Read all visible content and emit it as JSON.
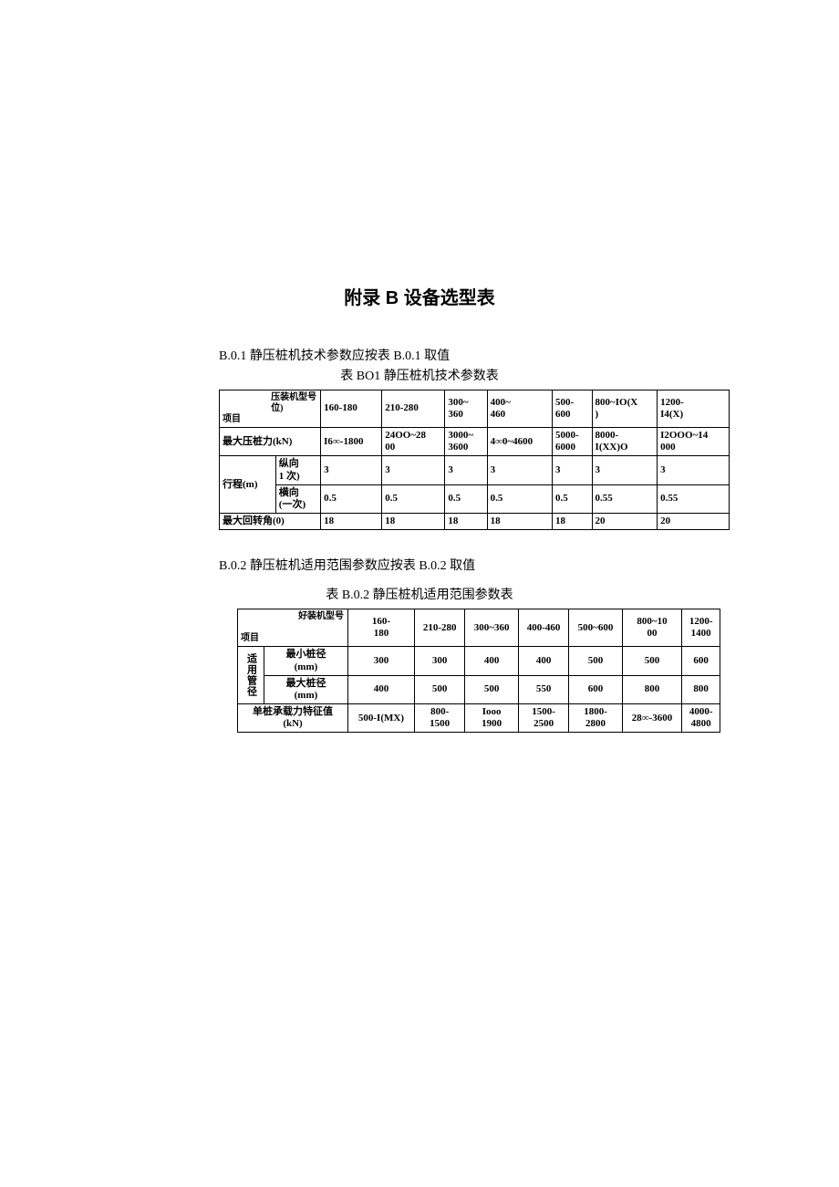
{
  "colors": {
    "background": "#ffffff",
    "text": "#000000",
    "border": "#000000"
  },
  "typography": {
    "body_family": "SimSun",
    "title_family": "SimHei",
    "title_size_pt": 20,
    "body_size_pt": 14,
    "table_size_pt": 11
  },
  "title": "附录 B 设备选型表",
  "sectionB01": {
    "intro": "B.0.1 静压桩机技术参数应按表 B.0.1 取值",
    "caption": "表 BO1 静压桩机技术参数表",
    "corner_top": "压装机型号\n位)",
    "corner_bottom": "项目",
    "model_cols": [
      "160-180",
      "210-280",
      "300~\n360",
      "400~\n460",
      "500-\n600",
      "800~IO(X\n)",
      "1200-\nI4(X)"
    ],
    "rows": {
      "max_force_label": "最大压桩力(kN)",
      "max_force": [
        "I6∞-1800",
        "24OO~28\n00",
        "3000~\n3600",
        "4∞0~4600",
        "5000-\n6000",
        "8000-\nI(XX)O",
        "I2OOO~14\n000"
      ],
      "stroke_group": "行程(m)",
      "stroke_long_label": "纵向\n1 次)",
      "stroke_long": [
        "3",
        "3",
        "3",
        "3",
        "3",
        "3",
        "3"
      ],
      "stroke_lat_label": "横向\n(一次)",
      "stroke_lat": [
        "0.5",
        "0.5",
        "0.5",
        "0.5",
        "0.5",
        "0.55",
        "0.55"
      ],
      "max_rot_label": "最大回转角(0)",
      "max_rot": [
        "18",
        "18",
        "18",
        "18",
        "18",
        "20",
        "20"
      ]
    }
  },
  "sectionB02": {
    "intro": "B.0.2 静压桩机适用范围参数应按表 B.0.2 取值",
    "caption": "表 B.0.2 静压桩机适用范围参数表",
    "corner_top": "好装机型号",
    "corner_bottom": "项目",
    "model_cols": [
      "160-\n180",
      "210-280",
      "300~360",
      "400-460",
      "500~600",
      "800~10\n00",
      "1200-\n1400"
    ],
    "rows": {
      "pipe_group": "适用管径",
      "min_dia_label": "最小桩径\n(mm)",
      "min_dia": [
        "300",
        "300",
        "400",
        "400",
        "500",
        "500",
        "600"
      ],
      "max_dia_label": "最大桩径\n(mm)",
      "max_dia": [
        "400",
        "500",
        "500",
        "550",
        "600",
        "800",
        "800"
      ],
      "bearing_label": "单桩承载力特征值\n(kN)",
      "bearing": [
        "500-I(MX)",
        "800-\n1500",
        "Iooo\n1900",
        "1500-\n2500",
        "1800-\n2800",
        "28∞-3600",
        "4000-\n4800"
      ]
    }
  }
}
